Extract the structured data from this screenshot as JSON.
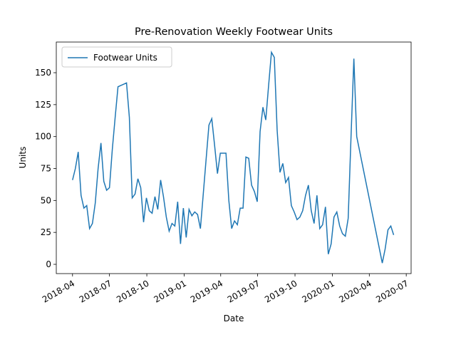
{
  "chart_data": {
    "type": "line",
    "title": "Pre-Renovation Weekly Footwear Units",
    "x_label": "Date",
    "y_label": "Units",
    "legend": "upper left",
    "x": [
      "2018-04-01",
      "2018-04-08",
      "2018-04-15",
      "2018-04-22",
      "2018-04-29",
      "2018-05-06",
      "2018-05-13",
      "2018-05-20",
      "2018-05-27",
      "2018-06-03",
      "2018-06-10",
      "2018-06-17",
      "2018-06-24",
      "2018-07-01",
      "2018-07-08",
      "2018-07-15",
      "2018-07-22",
      "2018-07-29",
      "2018-08-05",
      "2018-08-12",
      "2018-08-19",
      "2018-08-26",
      "2018-09-02",
      "2018-09-09",
      "2018-09-16",
      "2018-09-23",
      "2018-09-30",
      "2018-10-07",
      "2018-10-14",
      "2018-10-21",
      "2018-10-28",
      "2018-11-04",
      "2018-11-11",
      "2018-11-18",
      "2018-11-25",
      "2018-12-02",
      "2018-12-09",
      "2018-12-16",
      "2018-12-23",
      "2018-12-30",
      "2019-01-06",
      "2019-01-13",
      "2019-01-20",
      "2019-01-27",
      "2019-02-03",
      "2019-02-10",
      "2019-02-17",
      "2019-02-24",
      "2019-03-03",
      "2019-03-10",
      "2019-03-17",
      "2019-03-24",
      "2019-03-31",
      "2019-04-07",
      "2019-04-14",
      "2019-04-21",
      "2019-04-28",
      "2019-05-05",
      "2019-05-12",
      "2019-05-19",
      "2019-05-26",
      "2019-06-02",
      "2019-06-09",
      "2019-06-16",
      "2019-06-23",
      "2019-06-30",
      "2019-07-07",
      "2019-07-14",
      "2019-07-21",
      "2019-07-28",
      "2019-08-04",
      "2019-08-11",
      "2019-08-18",
      "2019-08-25",
      "2019-09-01",
      "2019-09-08",
      "2019-09-15",
      "2019-09-22",
      "2019-09-29",
      "2019-10-06",
      "2019-10-13",
      "2019-10-20",
      "2019-10-27",
      "2019-11-03",
      "2019-11-10",
      "2019-11-17",
      "2019-11-24",
      "2019-12-01",
      "2019-12-08",
      "2019-12-15",
      "2019-12-22",
      "2019-12-29",
      "2020-01-05",
      "2020-01-12",
      "2020-01-19",
      "2020-01-26",
      "2020-02-02",
      "2020-02-09",
      "2020-02-16",
      "2020-02-23",
      "2020-03-01",
      "2020-05-03",
      "2020-05-10",
      "2020-05-17",
      "2020-05-24",
      "2020-05-31"
    ],
    "series": [
      {
        "name": "Footwear Units",
        "color": "#1f77b4",
        "values": [
          66,
          75,
          88,
          54,
          44,
          46,
          28,
          32,
          48,
          75,
          95,
          65,
          58,
          60,
          90,
          115,
          139,
          140,
          141,
          142,
          115,
          52,
          55,
          67,
          60,
          33,
          52,
          42,
          40,
          53,
          43,
          66,
          53,
          37,
          26,
          32,
          30,
          49,
          16,
          44,
          21,
          43,
          38,
          41,
          39,
          28,
          55,
          82,
          109,
          114,
          93,
          71,
          87,
          87,
          87,
          50,
          28,
          34,
          31,
          44,
          44,
          84,
          83,
          62,
          57,
          49,
          104,
          123,
          113,
          140,
          166,
          162,
          105,
          72,
          79,
          64,
          68,
          46,
          41,
          35,
          37,
          42,
          54,
          62,
          42,
          32,
          54,
          28,
          31,
          45,
          8,
          16,
          37,
          41,
          30,
          24,
          22,
          36,
          100,
          161,
          100,
          1,
          12,
          27,
          30,
          23
        ]
      }
    ],
    "xlim": [
      "2018-02-20",
      "2020-07-13"
    ],
    "xticks": [
      {
        "value": "2018-04-01",
        "label": "2018-04"
      },
      {
        "value": "2018-07-01",
        "label": "2018-07"
      },
      {
        "value": "2018-10-01",
        "label": "2018-10"
      },
      {
        "value": "2019-01-01",
        "label": "2019-01"
      },
      {
        "value": "2019-04-01",
        "label": "2019-04"
      },
      {
        "value": "2019-07-01",
        "label": "2019-07"
      },
      {
        "value": "2019-10-01",
        "label": "2019-10"
      },
      {
        "value": "2020-01-01",
        "label": "2020-01"
      },
      {
        "value": "2020-04-01",
        "label": "2020-04"
      },
      {
        "value": "2020-07-01",
        "label": "2020-07"
      }
    ],
    "ylim": [
      -7.25,
      174
    ],
    "yticks": [
      0,
      25,
      50,
      75,
      100,
      125,
      150
    ]
  }
}
